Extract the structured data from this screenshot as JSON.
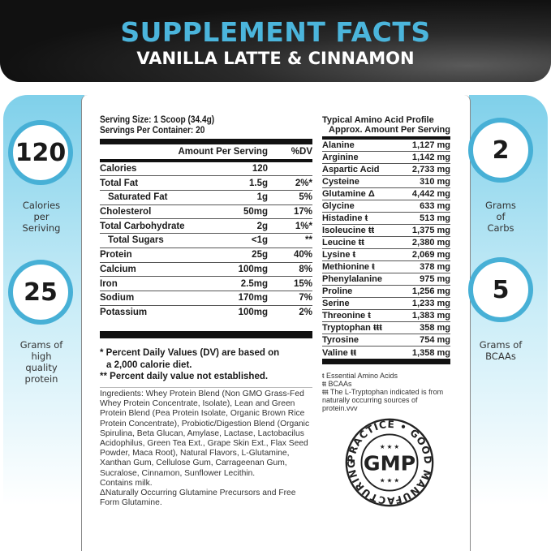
{
  "header": {
    "title": "SUPPLEMENT FACTS",
    "subtitle": "VANILLA LATTE & CINNAMON"
  },
  "highlights": [
    {
      "value": "120",
      "label_lines": [
        "Calories",
        "per",
        "Seriving"
      ]
    },
    {
      "value": "25",
      "label_lines": [
        "Grams of",
        "high",
        "quality",
        "protein"
      ]
    },
    {
      "value": "2",
      "label_lines": [
        "Grams",
        "of",
        "Carbs"
      ]
    },
    {
      "value": "5",
      "label_lines": [
        "Grams of",
        "BCAAs"
      ]
    }
  ],
  "nutrition": {
    "serving_size": "Serving Size: 1 Scoop (34.4g)",
    "servings_per_container": "Servings Per Container: 20",
    "col_amount": "Amount Per Serving",
    "col_dv": "%DV",
    "rows": [
      {
        "name": "Calories",
        "amount": "120",
        "dv": ""
      },
      {
        "name": "Total Fat",
        "amount": "1.5g",
        "dv": "2%*"
      },
      {
        "name": "Saturated Fat",
        "amount": "1g",
        "dv": "5%"
      },
      {
        "name": "Cholesterol",
        "amount": "50mg",
        "dv": "17%"
      },
      {
        "name": "Total Carbohydrate",
        "amount": "2g",
        "dv": "1%*"
      },
      {
        "name": "Total Sugars",
        "amount": "<1g",
        "dv": "**"
      },
      {
        "name": "Protein",
        "amount": "25g",
        "dv": "40%"
      },
      {
        "name": "Calcium",
        "amount": "100mg",
        "dv": "8%"
      },
      {
        "name": "Iron",
        "amount": "2.5mg",
        "dv": "15%"
      },
      {
        "name": "Sodium",
        "amount": "170mg",
        "dv": "7%"
      },
      {
        "name": "Potassium",
        "amount": "100mg",
        "dv": "2%"
      }
    ],
    "footnote1": "* Percent Daily Values (DV) are based on",
    "footnote1b": "a 2,000 calorie diet.",
    "footnote2": "** Percent daily value not established.",
    "ingredients": "Ingredients: Whey Protein Blend (Non GMO Grass-Fed Whey Protein Concentrate, Isolate), Lean and Green Protein Blend (Pea Protein Isolate, Organic Brown Rice Protein Concentrate), Probiotic/Digestion Blend (Organic Spirulina, Beta Glucan, Amylase, Lactase, Lactobacilus Acidophilus, Green Tea Ext., Grape Skin Ext., Flax Seed Powder, Maca Root), Natural Flavors, L-Glutamine, Xanthan Gum, Cellulose Gum, Carrageenan Gum, Sucralose, Cinnamon, Sunflower Lecithin.",
    "contains": "Contains milk.",
    "glutamine_note": "ΔNaturally Occurring Glutamine Precursors and Free Form Glutamine."
  },
  "amino": {
    "title": "Typical Amino Acid Profile",
    "subtitle": "Approx. Amount Per Serving",
    "rows": [
      {
        "name": "Alanine",
        "amount": "1,127 mg"
      },
      {
        "name": "Arginine",
        "amount": "1,142 mg"
      },
      {
        "name": "Aspartic Acid",
        "amount": "2,733 mg"
      },
      {
        "name": "Cysteine",
        "amount": "310 mg"
      },
      {
        "name": "Glutamine Δ",
        "amount": "4,442 mg"
      },
      {
        "name": "Glycine",
        "amount": "633 mg"
      },
      {
        "name": "Histadine ŧ",
        "amount": "513 mg"
      },
      {
        "name": "Isoleucine ŧŧ",
        "amount": "1,375 mg"
      },
      {
        "name": "Leucine ŧŧ",
        "amount": "2,380 mg"
      },
      {
        "name": "Lysine ŧ",
        "amount": "2,069 mg"
      },
      {
        "name": "Methionine ŧ",
        "amount": "378 mg"
      },
      {
        "name": "Phenylalanine",
        "amount": "975 mg"
      },
      {
        "name": "Proline",
        "amount": "1,256 mg"
      },
      {
        "name": "Serine",
        "amount": "1,233 mg"
      },
      {
        "name": "Threonine ŧ",
        "amount": "1,383 mg"
      },
      {
        "name": "Tryptophan ŧŧŧ",
        "amount": "358 mg"
      },
      {
        "name": "Tyrosine",
        "amount": "754 mg"
      },
      {
        "name": "Valine ŧŧ",
        "amount": "1,358 mg"
      }
    ],
    "foot1": "ŧ Essential Amino Acids",
    "foot2": "ŧŧ BCAAs",
    "foot3": "ŧŧŧ The L-Tryptophan indicated is from naturally occurring sources of protein.vvv"
  },
  "seal": {
    "center": "GMP",
    "ring_text": "PRACTICE • GOOD MANUFACTURING"
  },
  "colors": {
    "accent": "#47b0d6",
    "header_bg": "#111111"
  }
}
